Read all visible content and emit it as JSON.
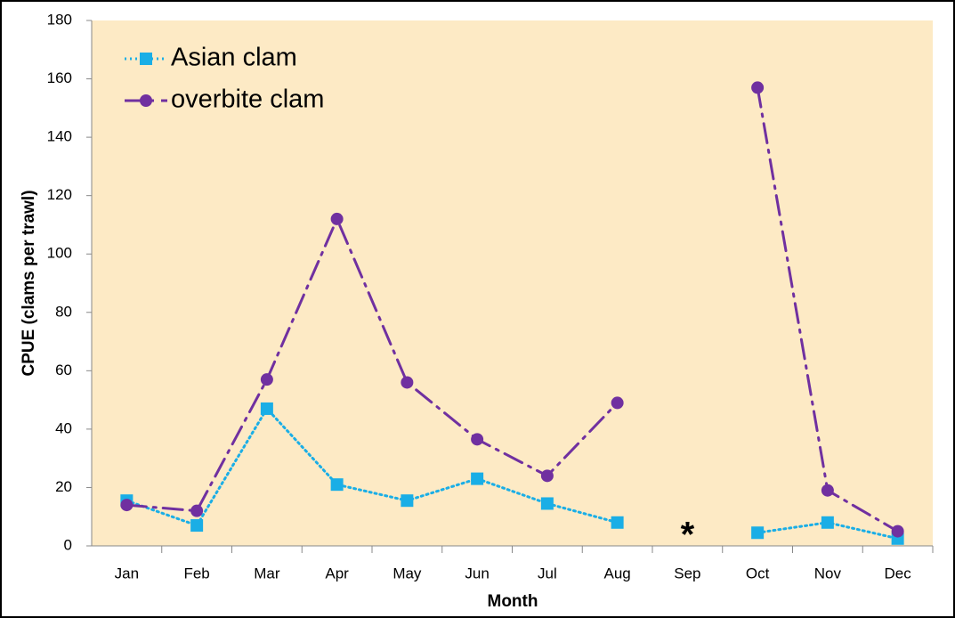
{
  "chart_data": {
    "type": "line",
    "x_label": "Month",
    "y_label": "CPUE (clams per trawl)",
    "categories": [
      "Jan",
      "Feb",
      "Mar",
      "Apr",
      "May",
      "Jun",
      "Jul",
      "Aug",
      "Sep",
      "Oct",
      "Nov",
      "Dec"
    ],
    "series": [
      {
        "name": "Asian clam",
        "color": "#1aaee6",
        "marker": "square",
        "dash": "dotted",
        "values": [
          15.5,
          7,
          47,
          21,
          15.5,
          23,
          14.5,
          8,
          null,
          4.5,
          8,
          2.5
        ]
      },
      {
        "name": "overbite clam",
        "color": "#7030a0",
        "marker": "circle",
        "dash": "dash-dot",
        "values": [
          14,
          12,
          57,
          112,
          56,
          36.5,
          24,
          49,
          null,
          157,
          19,
          5
        ]
      }
    ],
    "annotations": [
      {
        "text": "*",
        "category": "Sep"
      }
    ],
    "ylim": [
      0,
      180
    ],
    "yticks": [
      0,
      20,
      40,
      60,
      80,
      100,
      120,
      140,
      160,
      180
    ],
    "legend": "upper left",
    "background": "#fdeac5"
  }
}
